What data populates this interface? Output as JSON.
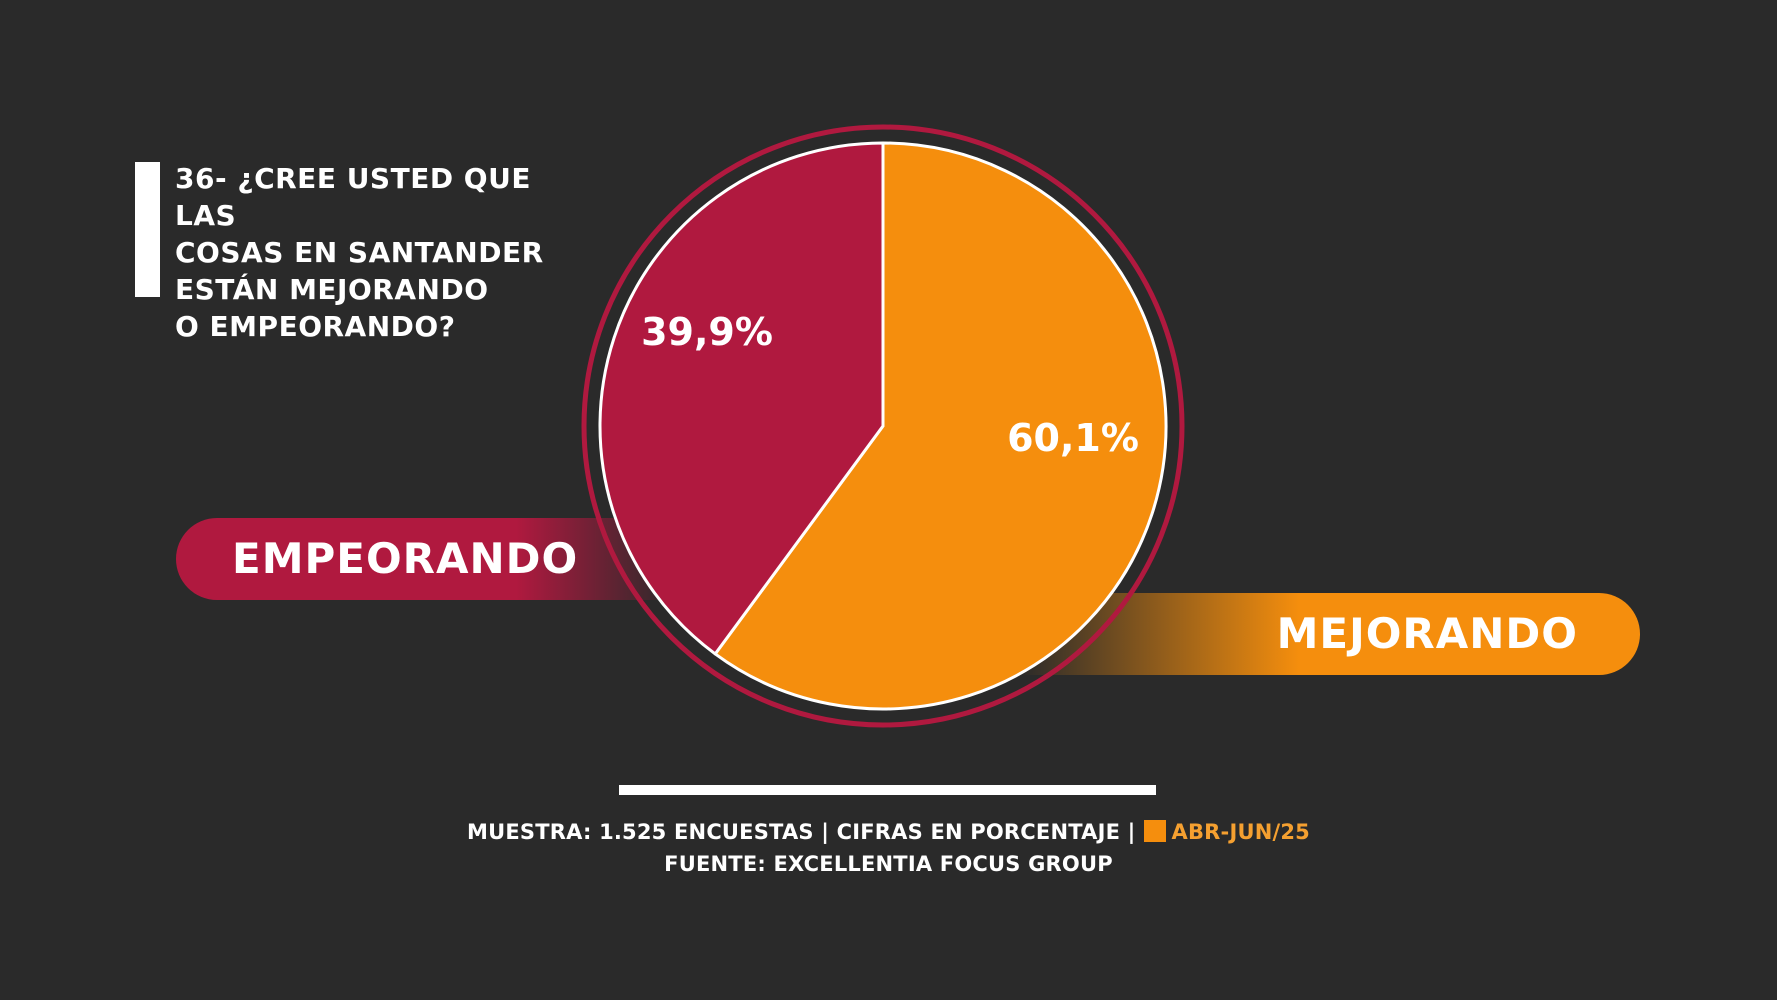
{
  "colors": {
    "background": "#2a2a2a",
    "empeorando": "#b0193f",
    "mejorando": "#f58e0d",
    "ring": "#b0193f",
    "text": "#ffffff",
    "legend_text": "#f5a030"
  },
  "question": "36- ¿CREE USTED QUE LAS\nCOSAS EN SANTANDER\nESTÁN MEJORANDO\nO EMPEORANDO?",
  "chart_data": {
    "type": "pie",
    "slices": [
      {
        "label": "MEJORANDO",
        "value": 60.1,
        "value_label": "60,1%",
        "color": "#f58e0d"
      },
      {
        "label": "EMPEORANDO",
        "value": 39.9,
        "value_label": "39,9%",
        "color": "#b0193f"
      }
    ],
    "start": "12 o'clock",
    "direction": "clockwise"
  },
  "footer": {
    "line1_prefix": "MUESTRA: 1.525 ENCUESTAS | CIFRAS EN PORCENTAJE |",
    "legend_label": "ABR-JUN/25",
    "line2": "FUENTE: EXCELLENTIA FOCUS GROUP"
  }
}
